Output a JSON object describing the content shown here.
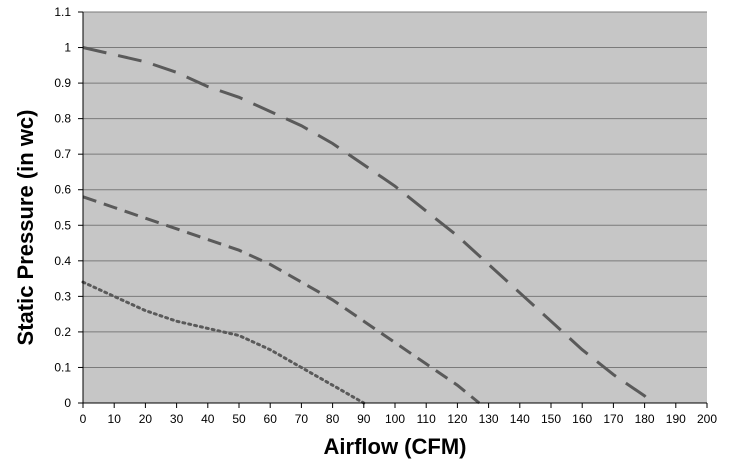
{
  "chart_data": {
    "type": "line",
    "title": "",
    "xlabel": "Airflow (CFM)",
    "ylabel": "Static Pressure (in wc)",
    "xlim": [
      0,
      200
    ],
    "ylim": [
      0,
      1.1
    ],
    "x_ticks": [
      "0",
      "10",
      "20",
      "30",
      "40",
      "50",
      "60",
      "70",
      "80",
      "90",
      "100",
      "110",
      "120",
      "130",
      "140",
      "150",
      "160",
      "170",
      "180",
      "190",
      "200"
    ],
    "y_ticks": [
      "0",
      "0.1",
      "0.2",
      "0.3",
      "0.4",
      "0.5",
      "0.6",
      "0.7",
      "0.8",
      "0.9",
      "1",
      "1.1"
    ],
    "grid": "horizontal",
    "legend": "none",
    "colors": {
      "plot_bg": "#c6c6c6",
      "grid": "#7a7a7a",
      "line": "#5a5a5a",
      "axis": "#000000"
    },
    "series": [
      {
        "style": "long-dash",
        "x": [
          0,
          10,
          20,
          30,
          40,
          50,
          60,
          70,
          80,
          90,
          100,
          110,
          120,
          130,
          140,
          150,
          160,
          170,
          180,
          182
        ],
        "y": [
          1.0,
          0.98,
          0.96,
          0.93,
          0.89,
          0.86,
          0.82,
          0.78,
          0.73,
          0.67,
          0.61,
          0.54,
          0.47,
          0.39,
          0.31,
          0.23,
          0.15,
          0.08,
          0.02,
          0.0
        ]
      },
      {
        "style": "dash",
        "x": [
          0,
          10,
          20,
          30,
          40,
          50,
          60,
          70,
          80,
          90,
          100,
          110,
          120,
          127
        ],
        "y": [
          0.58,
          0.55,
          0.52,
          0.49,
          0.46,
          0.43,
          0.39,
          0.34,
          0.29,
          0.23,
          0.17,
          0.11,
          0.05,
          0.0
        ]
      },
      {
        "style": "dot",
        "x": [
          0,
          10,
          20,
          30,
          40,
          50,
          60,
          70,
          80,
          90
        ],
        "y": [
          0.34,
          0.3,
          0.26,
          0.23,
          0.21,
          0.19,
          0.15,
          0.1,
          0.05,
          0.0
        ]
      }
    ]
  }
}
